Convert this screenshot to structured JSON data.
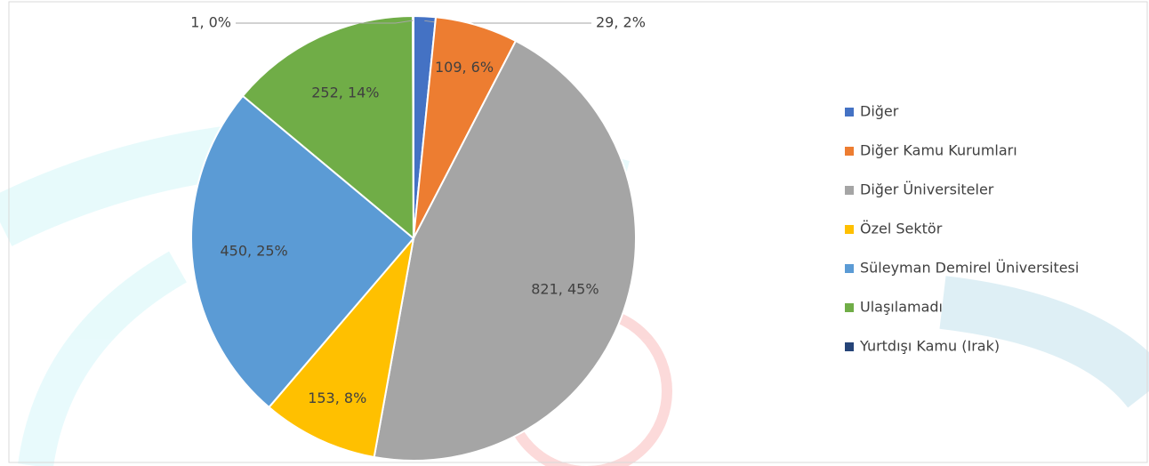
{
  "chart_data": {
    "type": "pie",
    "categories": [
      "Diğer",
      "Diğer Kamu Kurumları",
      "Diğer Üniversiteler",
      "Özel Sektör",
      "Süleyman Demirel Üniversitesi",
      "Ulaşılamadı",
      "Yurtdışı Kamu (Irak)"
    ],
    "values": [
      29,
      109,
      821,
      153,
      450,
      252,
      1
    ],
    "value_labels": [
      "29, 2%",
      "109, 6%",
      "821, 45%",
      "153, 8%",
      "450, 25%",
      "252, 14%",
      "1, 0%"
    ],
    "colors": [
      "#4472c4",
      "#ed7d31",
      "#a5a5a5",
      "#ffc000",
      "#5b9bd5",
      "#70ad47",
      "#264478"
    ],
    "legend": "right"
  }
}
